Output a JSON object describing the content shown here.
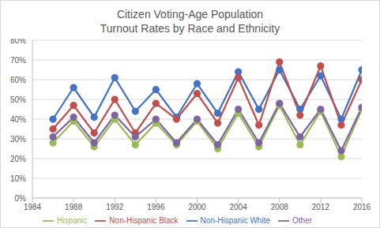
{
  "chart_data": {
    "type": "line",
    "title": "Citizen Voting-Age Population\nTurnout Rates by Race and Ethnicity",
    "x": [
      1986,
      1988,
      1990,
      1992,
      1994,
      1996,
      1998,
      2000,
      2002,
      2004,
      2006,
      2008,
      2010,
      2012,
      2014,
      2016
    ],
    "series": [
      {
        "name": "Non-Hispanic White",
        "color": "#4472c4",
        "marker": "circle",
        "values": [
          40,
          56,
          41,
          61,
          44,
          55,
          41,
          58,
          43,
          64,
          45,
          65,
          45,
          62,
          40,
          65
        ]
      },
      {
        "name": "Non-Hispanic Black",
        "color": "#c0504d",
        "marker": "circle",
        "values": [
          35,
          47,
          33,
          50,
          33,
          48,
          40,
          53,
          38,
          61,
          37,
          69,
          42,
          67,
          37,
          60
        ]
      },
      {
        "name": "Hispanic",
        "color": "#9bbb59",
        "marker": "circle",
        "values": [
          28,
          39,
          26,
          40,
          27,
          38,
          27,
          39,
          25,
          43,
          26,
          47,
          27,
          44,
          21,
          45
        ]
      },
      {
        "name": "Other",
        "color": "#8064a2",
        "marker": "circle",
        "values": [
          31,
          41,
          28,
          42,
          31,
          40,
          28,
          40,
          27,
          45,
          28,
          48,
          31,
          45,
          24,
          46
        ]
      }
    ],
    "xlim": [
      1984,
      2016
    ],
    "xticks": [
      1984,
      1988,
      1992,
      1996,
      2000,
      2004,
      2008,
      2012,
      2016
    ],
    "ylim": [
      0,
      80
    ],
    "yticks": [
      {
        "value": 0,
        "label": "0%"
      },
      {
        "value": 10,
        "label": "10%"
      },
      {
        "value": 20,
        "label": "20%"
      },
      {
        "value": 30,
        "label": "30%"
      },
      {
        "value": 40,
        "label": "40%"
      },
      {
        "value": 50,
        "label": "50%"
      },
      {
        "value": 60,
        "label": "60%"
      },
      {
        "value": 70,
        "label": "70%"
      },
      {
        "value": 80,
        "label": "80%"
      }
    ],
    "grid": true,
    "legend": "bottom"
  }
}
